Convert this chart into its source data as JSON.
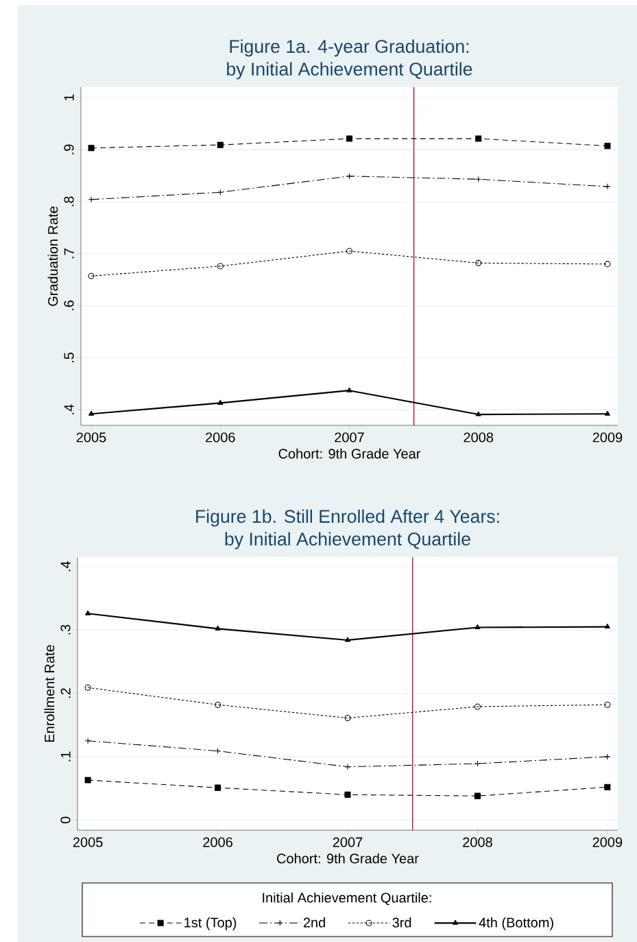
{
  "chart_data": [
    {
      "type": "line",
      "title": "Figure 1a. 4-year Graduation:",
      "subtitle": "by Initial Achievement Quartile",
      "xlabel": "Cohort: 9th Grade Year",
      "ylabel": "Graduation Rate",
      "x": [
        2005,
        2006,
        2007,
        2008,
        2009
      ],
      "series": [
        {
          "color": "#000000",
          "marker": "square",
          "line_style": "dashed",
          "values": [
            0.903,
            0.909,
            0.921,
            0.921,
            0.907
          ]
        },
        {
          "color": "#000000",
          "marker": "cross",
          "line_style": "dashdot",
          "values": [
            0.804,
            0.818,
            0.849,
            0.843,
            0.829
          ]
        },
        {
          "color": "#000000",
          "marker": "circle",
          "line_style": "dotted",
          "values": [
            0.657,
            0.676,
            0.705,
            0.682,
            0.68
          ]
        },
        {
          "color": "#000000",
          "marker": "triangle",
          "line_style": "solid",
          "values": [
            0.392,
            0.413,
            0.437,
            0.391,
            0.392
          ]
        }
      ],
      "xlim": [
        2004.92,
        2009.08
      ],
      "ylim": [
        0.37,
        1.02
      ],
      "xticks": [
        2005,
        2006,
        2007,
        2008,
        2009
      ],
      "yticks": [
        {
          "value": 0.4,
          "label": ".4"
        },
        {
          "value": 0.5,
          "label": ".5"
        },
        {
          "value": 0.6,
          "label": ".6"
        },
        {
          "value": 0.7,
          "label": ".7"
        },
        {
          "value": 0.8,
          "label": ".8"
        },
        {
          "value": 0.9,
          "label": ".9"
        },
        {
          "value": 1,
          "label": "1"
        }
      ],
      "grid": "y",
      "ref_lines": [
        {
          "axis": "x",
          "value": 2007.5,
          "color": "#c10534"
        }
      ]
    },
    {
      "type": "line",
      "title": "Figure 1b. Still Enrolled After 4 Years:",
      "subtitle": "by Initial Achievement Quartile",
      "xlabel": "Cohort: 9th Grade Year",
      "ylabel": "Enrollment Rate",
      "x": [
        2005,
        2006,
        2007,
        2008,
        2009
      ],
      "series": [
        {
          "name": "1st (Top)",
          "color": "#000000",
          "marker": "square",
          "line_style": "dashed",
          "values": [
            0.063,
            0.051,
            0.04,
            0.038,
            0.052
          ]
        },
        {
          "name": "2nd",
          "color": "#000000",
          "marker": "cross",
          "line_style": "dashdot",
          "values": [
            0.125,
            0.109,
            0.084,
            0.089,
            0.1
          ]
        },
        {
          "name": "3rd",
          "color": "#000000",
          "marker": "circle",
          "line_style": "dotted",
          "values": [
            0.209,
            0.182,
            0.161,
            0.179,
            0.182
          ]
        },
        {
          "name": "4th (Bottom)",
          "color": "#000000",
          "marker": "triangle",
          "line_style": "solid",
          "values": [
            0.326,
            0.302,
            0.284,
            0.304,
            0.305
          ]
        }
      ],
      "xlim": [
        2004.92,
        2009.08
      ],
      "ylim": [
        -0.016,
        0.415
      ],
      "xticks": [
        2005,
        2006,
        2007,
        2008,
        2009
      ],
      "yticks": [
        {
          "value": 0,
          "label": "0"
        },
        {
          "value": 0.1,
          "label": ".1"
        },
        {
          "value": 0.2,
          "label": ".2"
        },
        {
          "value": 0.3,
          "label": ".3"
        },
        {
          "value": 0.4,
          "label": ".4"
        }
      ],
      "grid": "y",
      "legend": "bottom",
      "legend_title": "Initial Achievement Quartile:",
      "ref_lines": [
        {
          "axis": "x",
          "value": 2007.5,
          "color": "#c10534"
        }
      ]
    }
  ]
}
